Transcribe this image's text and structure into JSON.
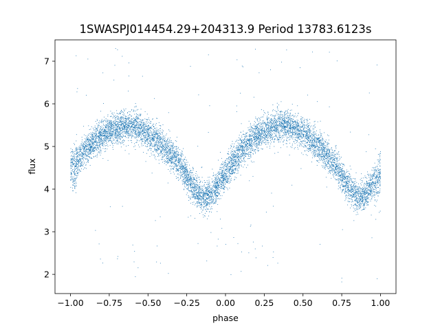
{
  "chart_data": {
    "type": "scatter",
    "title": "1SWASPJ014454.29+204313.9 Period 13783.6123s",
    "xlabel": "phase",
    "ylabel": "flux",
    "xlim": [
      -1.1,
      1.1
    ],
    "ylim": [
      1.55,
      7.5
    ],
    "x_ticks": [
      -1.0,
      -0.75,
      -0.5,
      -0.25,
      0.0,
      0.25,
      0.5,
      0.75,
      1.0
    ],
    "x_tick_labels": [
      "−1.00",
      "−0.75",
      "−0.50",
      "−0.25",
      "0.00",
      "0.25",
      "0.50",
      "0.75",
      "1.00"
    ],
    "y_ticks": [
      2,
      3,
      4,
      5,
      6,
      7
    ],
    "y_tick_labels": [
      "2",
      "3",
      "4",
      "5",
      "6",
      "7"
    ],
    "grid": false,
    "marker_color": "#1f77b4",
    "series": [
      {
        "phase_range": [
          -1.0,
          1.0
        ],
        "approx_point_count": 9000,
        "light_curve": {
          "x": [
            -1.0,
            -0.9,
            -0.8,
            -0.7,
            -0.6,
            -0.5,
            -0.4,
            -0.3,
            -0.2,
            -0.15,
            -0.1,
            0.0,
            0.1,
            0.2,
            0.3,
            0.4,
            0.5,
            0.6,
            0.7,
            0.8,
            0.85,
            0.9,
            1.0
          ],
          "y": [
            4.4,
            4.95,
            5.25,
            5.45,
            5.5,
            5.3,
            5.0,
            4.6,
            4.0,
            3.8,
            3.85,
            4.35,
            4.9,
            5.25,
            5.45,
            5.5,
            5.3,
            5.0,
            4.6,
            4.0,
            3.8,
            3.85,
            4.35
          ]
        },
        "scatter_sigma": 0.18,
        "outlier_range": [
          1.8,
          7.3
        ]
      }
    ]
  }
}
